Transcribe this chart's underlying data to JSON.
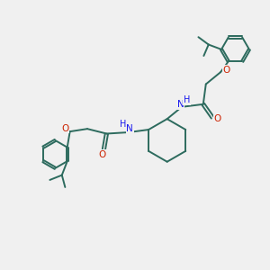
{
  "bg_color": "#f0f0f0",
  "bond_color": "#2d6b5e",
  "O_color": "#cc2200",
  "N_color": "#1a1aee",
  "H_color": "#1a1aee",
  "lw": 1.4,
  "figsize": [
    3.0,
    3.0
  ],
  "dpi": 100,
  "xlim": [
    0,
    10
  ],
  "ylim": [
    0,
    10
  ]
}
